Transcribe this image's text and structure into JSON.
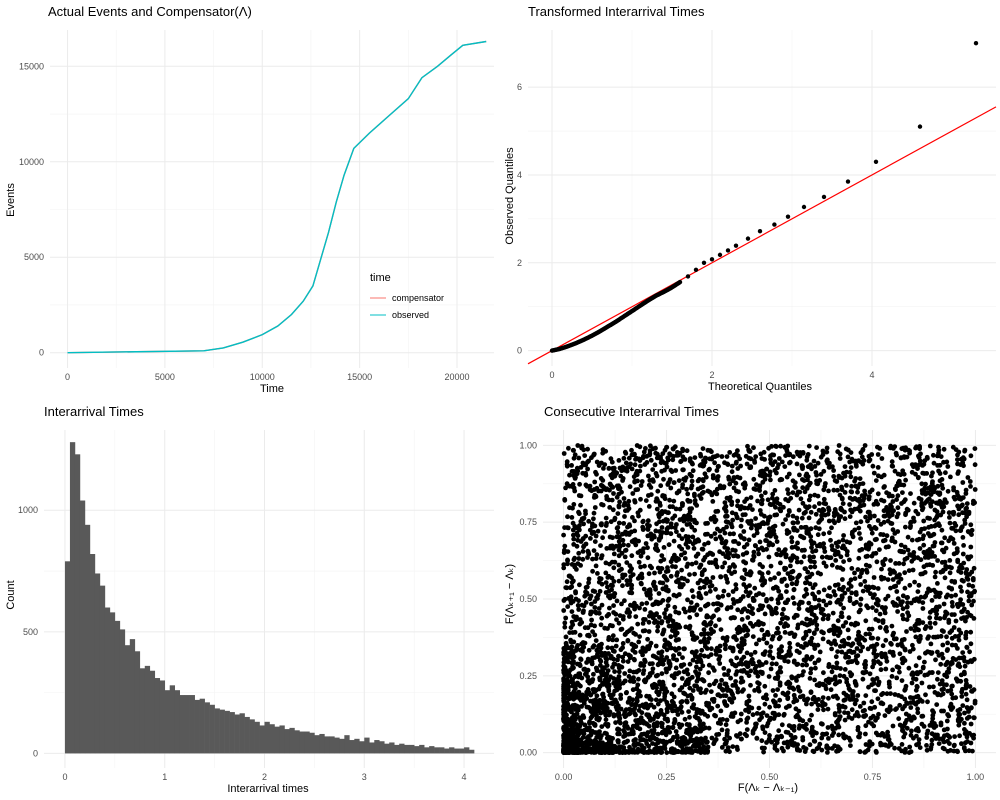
{
  "chart_data": [
    {
      "type": "line",
      "title": "Actual Events and Compensator(Λ)",
      "xlabel": "Time",
      "ylabel": "Events",
      "xlim": [
        -900,
        21900
      ],
      "ylim": [
        -800,
        16900
      ],
      "x_ticks": [
        0,
        5000,
        10000,
        15000,
        20000
      ],
      "x_tick_labels": [
        "0",
        "5000",
        "10000",
        "15000",
        "20000"
      ],
      "y_ticks": [
        0,
        5000,
        10000,
        15000
      ],
      "y_tick_labels": [
        "0",
        "5000",
        "10000",
        "15000"
      ],
      "grid": true,
      "legend": {
        "title": "time",
        "placement": "inside-lower-right",
        "entries": [
          {
            "label": "compensator",
            "color": "#F8766D"
          },
          {
            "label": "observed",
            "color": "#00BFC4"
          }
        ]
      },
      "series": [
        {
          "name": "compensator",
          "color": "#F8766D",
          "x": [
            0,
            7000,
            8000,
            9000,
            10000,
            10800,
            11500,
            12100,
            12600,
            13000,
            13400,
            13800,
            14200,
            14700,
            15500,
            16500,
            17500,
            18200,
            19000,
            19700,
            20300,
            21500
          ],
          "y": [
            0,
            100,
            250,
            550,
            950,
            1400,
            2000,
            2700,
            3500,
            4900,
            6300,
            7900,
            9300,
            10700,
            11500,
            12400,
            13300,
            14400,
            15000,
            15600,
            16100,
            16300
          ]
        },
        {
          "name": "observed",
          "color": "#00BFC4",
          "x": [
            0,
            7000,
            8000,
            9000,
            10000,
            10800,
            11500,
            12100,
            12600,
            13000,
            13400,
            13800,
            14200,
            14700,
            15500,
            16500,
            17500,
            18200,
            19000,
            19700,
            20300,
            21500
          ],
          "y": [
            0,
            100,
            250,
            550,
            950,
            1400,
            2000,
            2700,
            3500,
            4900,
            6300,
            7900,
            9300,
            10700,
            11500,
            12400,
            13300,
            14400,
            15000,
            15600,
            16100,
            16300
          ]
        }
      ]
    },
    {
      "type": "scatter",
      "title": "Transformed Interarrival Times",
      "xlabel": "Theoretical Quantiles",
      "ylabel": "Observed Quantiles",
      "xlim": [
        -0.3,
        5.55
      ],
      "ylim": [
        -0.35,
        7.3
      ],
      "x_ticks": [
        0,
        2,
        4
      ],
      "x_tick_labels": [
        "0",
        "2",
        "4"
      ],
      "y_ticks": [
        0,
        2,
        4,
        6
      ],
      "y_tick_labels": [
        "0",
        "2",
        "4",
        "6"
      ],
      "grid": true,
      "reference_line": {
        "color": "#FF0000",
        "intercept": 0.0,
        "slope": 1.0
      },
      "points": [
        [
          0,
          0
        ],
        [
          0.1,
          0.04
        ],
        [
          0.2,
          0.1
        ],
        [
          0.3,
          0.17
        ],
        [
          0.4,
          0.25
        ],
        [
          0.5,
          0.34
        ],
        [
          0.6,
          0.44
        ],
        [
          0.7,
          0.55
        ],
        [
          0.8,
          0.66
        ],
        [
          0.9,
          0.78
        ],
        [
          1.0,
          0.9
        ],
        [
          1.1,
          1.02
        ],
        [
          1.2,
          1.14
        ],
        [
          1.3,
          1.25
        ],
        [
          1.4,
          1.34
        ],
        [
          1.5,
          1.44
        ],
        [
          1.6,
          1.56
        ],
        [
          1.7,
          1.69
        ],
        [
          1.8,
          1.84
        ],
        [
          1.9,
          2.0
        ],
        [
          2.0,
          2.08
        ],
        [
          2.1,
          2.18
        ],
        [
          2.2,
          2.28
        ],
        [
          2.3,
          2.39
        ],
        [
          2.45,
          2.55
        ],
        [
          2.6,
          2.72
        ],
        [
          2.78,
          2.87
        ],
        [
          2.95,
          3.05
        ],
        [
          3.15,
          3.27
        ],
        [
          3.4,
          3.5
        ],
        [
          3.7,
          3.85
        ],
        [
          4.05,
          4.3
        ],
        [
          4.6,
          5.1
        ],
        [
          5.3,
          7.0
        ]
      ]
    },
    {
      "type": "bar",
      "title": "Interarrival Times",
      "xlabel": "Interarrival times",
      "ylabel": "Count",
      "xlim": [
        -0.21,
        4.3
      ],
      "ylim": [
        -60,
        1330
      ],
      "x_ticks": [
        0,
        1,
        2,
        3,
        4
      ],
      "x_tick_labels": [
        "0",
        "1",
        "2",
        "3",
        "4"
      ],
      "y_ticks": [
        0,
        500,
        1000
      ],
      "y_tick_labels": [
        "0",
        "500",
        "1000"
      ],
      "grid": true,
      "fill": "#595959",
      "bin_start": 0,
      "bin_width": 0.05,
      "values": [
        790,
        1280,
        1230,
        1040,
        940,
        820,
        740,
        690,
        600,
        580,
        545,
        510,
        445,
        470,
        420,
        350,
        360,
        340,
        310,
        300,
        260,
        280,
        260,
        240,
        240,
        240,
        220,
        225,
        210,
        200,
        185,
        180,
        175,
        170,
        160,
        165,
        150,
        140,
        130,
        115,
        130,
        120,
        110,
        115,
        100,
        105,
        95,
        90,
        90,
        85,
        75,
        80,
        70,
        70,
        65,
        60,
        75,
        55,
        60,
        50,
        65,
        45,
        55,
        50,
        40,
        45,
        35,
        40,
        35,
        35,
        30,
        35,
        25,
        30,
        25,
        25,
        20,
        25,
        20,
        20,
        25,
        15
      ]
    },
    {
      "type": "scatter",
      "title": "Consecutive Interarrival Times",
      "xlabel": "F(Λₖ − Λₖ₋₁)",
      "ylabel": "F(Λₖ₊₁ − Λₖ)",
      "xlim": [
        -0.05,
        1.05
      ],
      "ylim": [
        -0.05,
        1.05
      ],
      "x_ticks": [
        0,
        0.25,
        0.5,
        0.75,
        1.0
      ],
      "x_tick_labels": [
        "0.00",
        "0.25",
        "0.50",
        "0.75",
        "1.00"
      ],
      "y_ticks": [
        0,
        0.25,
        0.5,
        0.75,
        1.0
      ],
      "y_tick_labels": [
        "0.00",
        "0.25",
        "0.50",
        "0.75",
        "1.00"
      ],
      "grid": true,
      "distribution": "approximately uniform on [0,1] x [0,1], denser near (0,0)"
    }
  ]
}
